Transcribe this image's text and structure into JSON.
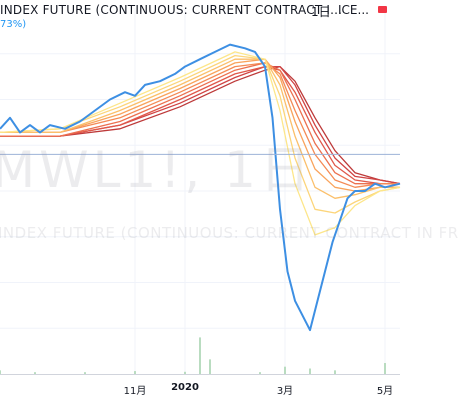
{
  "header": {
    "title": "INDEX FUTURE (CONTINUOUS: CURRENT CONTRACT I...",
    "interval": "1日",
    "exchange": "ICE...",
    "change": "73%)"
  },
  "watermark": {
    "symbol": "MWL1!, 1日",
    "description": "INDEX FUTURE (CONTINUOUS: CURRENT CONTRACT IN FR"
  },
  "x_axis": {
    "ticks": [
      {
        "label": "11月",
        "pos": 11
      },
      {
        "label": "2020",
        "pos": 12,
        "bold": true
      },
      {
        "label": "3月",
        "pos": 14
      },
      {
        "label": "5月",
        "pos": 16
      }
    ]
  },
  "colors": {
    "price": "#3d8fe3",
    "ribbon": [
      "#fde68a",
      "#fcd57a",
      "#fbbf6a",
      "#f9a35c",
      "#f48a55",
      "#ec704f",
      "#e0584a",
      "#d04444",
      "#bd3a3a"
    ],
    "volume": "#b9dcc0"
  },
  "chart_data": {
    "type": "line",
    "time_unit": "month",
    "x_range": [
      8.3,
      16.3
    ],
    "y_range": [
      0.0,
      1.0
    ],
    "price": [
      [
        8.3,
        0.67
      ],
      [
        8.5,
        0.7
      ],
      [
        8.7,
        0.66
      ],
      [
        8.9,
        0.68
      ],
      [
        9.1,
        0.66
      ],
      [
        9.3,
        0.68
      ],
      [
        9.6,
        0.67
      ],
      [
        9.9,
        0.69
      ],
      [
        10.2,
        0.72
      ],
      [
        10.5,
        0.75
      ],
      [
        10.8,
        0.77
      ],
      [
        11.0,
        0.76
      ],
      [
        11.2,
        0.79
      ],
      [
        11.5,
        0.8
      ],
      [
        11.8,
        0.82
      ],
      [
        12.0,
        0.84
      ],
      [
        12.3,
        0.86
      ],
      [
        12.6,
        0.88
      ],
      [
        12.9,
        0.9
      ],
      [
        13.2,
        0.89
      ],
      [
        13.4,
        0.88
      ],
      [
        13.6,
        0.84
      ],
      [
        13.75,
        0.7
      ],
      [
        13.9,
        0.45
      ],
      [
        14.05,
        0.28
      ],
      [
        14.2,
        0.2
      ],
      [
        14.35,
        0.16
      ],
      [
        14.5,
        0.12
      ],
      [
        14.65,
        0.2
      ],
      [
        14.8,
        0.28
      ],
      [
        14.95,
        0.36
      ],
      [
        15.1,
        0.42
      ],
      [
        15.25,
        0.48
      ],
      [
        15.4,
        0.5
      ],
      [
        15.6,
        0.5
      ],
      [
        15.8,
        0.52
      ],
      [
        16.0,
        0.51
      ],
      [
        16.3,
        0.52
      ]
    ],
    "moving_averages": [
      {
        "period": 10,
        "values": [
          [
            8.3,
            0.66
          ],
          [
            9.5,
            0.67
          ],
          [
            10.7,
            0.74
          ],
          [
            11.9,
            0.81
          ],
          [
            13.0,
            0.88
          ],
          [
            13.6,
            0.86
          ],
          [
            13.9,
            0.72
          ],
          [
            14.2,
            0.52
          ],
          [
            14.6,
            0.38
          ],
          [
            15.0,
            0.4
          ],
          [
            15.4,
            0.46
          ],
          [
            15.9,
            0.5
          ],
          [
            16.3,
            0.51
          ]
        ]
      },
      {
        "period": 20,
        "values": [
          [
            8.3,
            0.66
          ],
          [
            9.5,
            0.67
          ],
          [
            10.7,
            0.73
          ],
          [
            11.9,
            0.8
          ],
          [
            13.0,
            0.87
          ],
          [
            13.6,
            0.86
          ],
          [
            13.9,
            0.76
          ],
          [
            14.2,
            0.59
          ],
          [
            14.6,
            0.45
          ],
          [
            15.0,
            0.44
          ],
          [
            15.4,
            0.47
          ],
          [
            15.9,
            0.5
          ],
          [
            16.3,
            0.51
          ]
        ]
      },
      {
        "period": 30,
        "values": [
          [
            8.3,
            0.66
          ],
          [
            9.5,
            0.66
          ],
          [
            10.7,
            0.72
          ],
          [
            11.9,
            0.79
          ],
          [
            13.0,
            0.86
          ],
          [
            13.6,
            0.86
          ],
          [
            13.9,
            0.79
          ],
          [
            14.2,
            0.65
          ],
          [
            14.6,
            0.51
          ],
          [
            15.0,
            0.48
          ],
          [
            15.4,
            0.49
          ],
          [
            15.9,
            0.51
          ],
          [
            16.3,
            0.51
          ]
        ]
      },
      {
        "period": 40,
        "values": [
          [
            8.3,
            0.66
          ],
          [
            9.5,
            0.66
          ],
          [
            10.7,
            0.71
          ],
          [
            11.9,
            0.78
          ],
          [
            13.0,
            0.85
          ],
          [
            13.6,
            0.86
          ],
          [
            13.9,
            0.81
          ],
          [
            14.2,
            0.69
          ],
          [
            14.6,
            0.56
          ],
          [
            15.0,
            0.51
          ],
          [
            15.4,
            0.5
          ],
          [
            15.9,
            0.51
          ],
          [
            16.3,
            0.51
          ]
        ]
      },
      {
        "period": 50,
        "values": [
          [
            8.3,
            0.66
          ],
          [
            9.5,
            0.66
          ],
          [
            10.7,
            0.7
          ],
          [
            11.9,
            0.77
          ],
          [
            13.0,
            0.84
          ],
          [
            13.6,
            0.85
          ],
          [
            13.9,
            0.82
          ],
          [
            14.2,
            0.72
          ],
          [
            14.6,
            0.6
          ],
          [
            15.0,
            0.53
          ],
          [
            15.4,
            0.51
          ],
          [
            15.9,
            0.52
          ],
          [
            16.3,
            0.52
          ]
        ]
      },
      {
        "period": 60,
        "values": [
          [
            8.3,
            0.65
          ],
          [
            9.5,
            0.65
          ],
          [
            10.7,
            0.69
          ],
          [
            11.9,
            0.76
          ],
          [
            13.0,
            0.83
          ],
          [
            13.6,
            0.85
          ],
          [
            13.9,
            0.83
          ],
          [
            14.2,
            0.75
          ],
          [
            14.6,
            0.63
          ],
          [
            15.0,
            0.55
          ],
          [
            15.4,
            0.52
          ],
          [
            15.9,
            0.52
          ],
          [
            16.3,
            0.52
          ]
        ]
      },
      {
        "period": 70,
        "values": [
          [
            8.3,
            0.65
          ],
          [
            9.5,
            0.65
          ],
          [
            10.7,
            0.68
          ],
          [
            11.9,
            0.75
          ],
          [
            13.0,
            0.82
          ],
          [
            13.6,
            0.84
          ],
          [
            13.9,
            0.83
          ],
          [
            14.2,
            0.77
          ],
          [
            14.6,
            0.66
          ],
          [
            15.0,
            0.57
          ],
          [
            15.4,
            0.53
          ],
          [
            15.9,
            0.52
          ],
          [
            16.3,
            0.52
          ]
        ]
      },
      {
        "period": 80,
        "values": [
          [
            8.3,
            0.65
          ],
          [
            9.5,
            0.65
          ],
          [
            10.7,
            0.68
          ],
          [
            11.9,
            0.74
          ],
          [
            13.0,
            0.81
          ],
          [
            13.6,
            0.84
          ],
          [
            13.9,
            0.84
          ],
          [
            14.2,
            0.79
          ],
          [
            14.6,
            0.68
          ],
          [
            15.0,
            0.59
          ],
          [
            15.4,
            0.54
          ],
          [
            15.9,
            0.53
          ],
          [
            16.3,
            0.52
          ]
        ]
      },
      {
        "period": 90,
        "values": [
          [
            8.3,
            0.65
          ],
          [
            9.5,
            0.65
          ],
          [
            10.7,
            0.67
          ],
          [
            11.9,
            0.73
          ],
          [
            13.0,
            0.8
          ],
          [
            13.6,
            0.83
          ],
          [
            13.9,
            0.84
          ],
          [
            14.2,
            0.8
          ],
          [
            14.6,
            0.7
          ],
          [
            15.0,
            0.61
          ],
          [
            15.4,
            0.55
          ],
          [
            15.9,
            0.53
          ],
          [
            16.3,
            0.52
          ]
        ]
      }
    ],
    "volume": [
      [
        8.3,
        0.01
      ],
      [
        9.0,
        0.005
      ],
      [
        10.0,
        0.005
      ],
      [
        11.0,
        0.008
      ],
      [
        12.0,
        0.006
      ],
      [
        12.3,
        0.1
      ],
      [
        12.5,
        0.04
      ],
      [
        13.5,
        0.005
      ],
      [
        14.0,
        0.02
      ],
      [
        14.5,
        0.015
      ],
      [
        15.0,
        0.01
      ],
      [
        16.0,
        0.03
      ]
    ],
    "grid": true,
    "crosshair_y": 0.6
  }
}
